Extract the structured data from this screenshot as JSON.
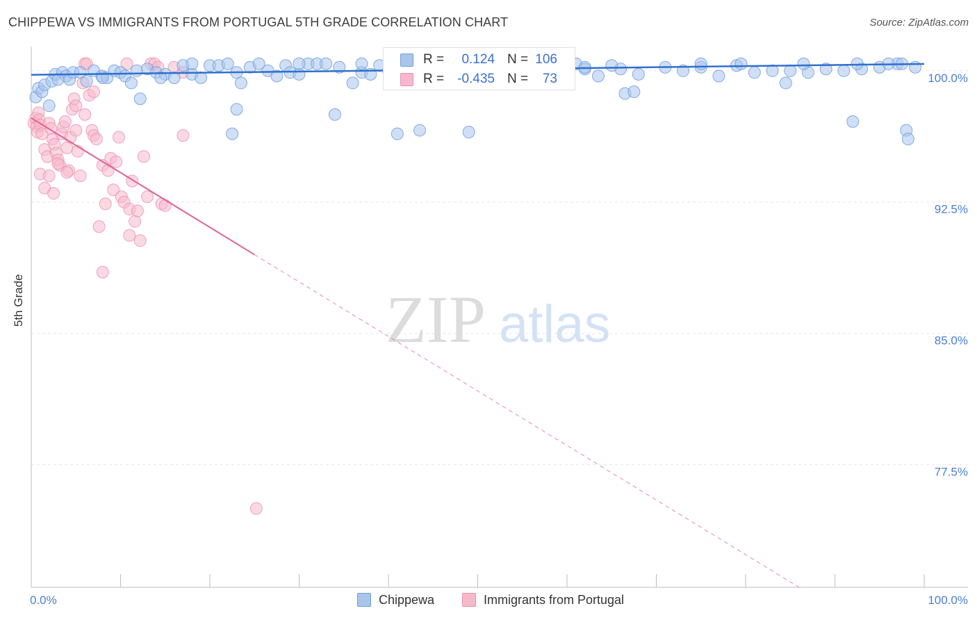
{
  "header": {
    "title": "CHIPPEWA VS IMMIGRANTS FROM PORTUGAL 5TH GRADE CORRELATION CHART",
    "source": "Source: ZipAtlas.com"
  },
  "watermark": {
    "zip": "ZIP",
    "atlas": "atlas"
  },
  "legend_top": {
    "rows": [
      {
        "r_label": "R =",
        "r_value": "0.124",
        "n_label": "N =",
        "n_value": "106"
      },
      {
        "r_label": "R =",
        "r_value": "-0.435",
        "n_label": "N =",
        "n_value": "73"
      }
    ]
  },
  "legend_bottom": {
    "series1": "Chippewa",
    "series2": "Immigrants from Portugal"
  },
  "colors": {
    "blue_fill": "#a9c5ec",
    "blue_stroke": "#6f9fdc",
    "blue_line": "#2f6fcf",
    "pink_fill": "#f6b9cc",
    "pink_stroke": "#ec8fae",
    "pink_line": "#e0628e",
    "axis_label_blue": "#4a7fd4",
    "grid": "#e5e5e5"
  },
  "chart_data": {
    "type": "scatter",
    "title": "CHIPPEWA VS IMMIGRANTS FROM PORTUGAL 5TH GRADE CORRELATION CHART",
    "xlabel": "",
    "ylabel": "5th Grade",
    "xlim": [
      0,
      100
    ],
    "ylim": [
      70.5,
      101.5
    ],
    "y_ticks": [
      100,
      92.5,
      85,
      77.5
    ],
    "y_tick_labels": [
      "100.0%",
      "92.5%",
      "85.0%",
      "77.5%"
    ],
    "x_tick_labels": [
      "0.0%",
      "100.0%"
    ],
    "grid": true,
    "series": [
      {
        "name": "Chippewa",
        "r": 0.124,
        "n": 106,
        "trend": {
          "x": [
            0,
            100
          ],
          "y": [
            99.77,
            100.39
          ],
          "dashed_from": 100
        },
        "points": [
          [
            0.5,
            98.5
          ],
          [
            0.8,
            99.0
          ],
          [
            1.2,
            98.8
          ],
          [
            1.5,
            99.2
          ],
          [
            2.3,
            99.4
          ],
          [
            2.7,
            99.8
          ],
          [
            3.5,
            99.9
          ],
          [
            3.9,
            99.7
          ],
          [
            4.3,
            99.5
          ],
          [
            4.7,
            99.9
          ],
          [
            5.5,
            99.9
          ],
          [
            6.2,
            99.4
          ],
          [
            7.0,
            100.0
          ],
          [
            7.9,
            99.7
          ],
          [
            8.5,
            99.6
          ],
          [
            9.3,
            100.0
          ],
          [
            10.0,
            99.9
          ],
          [
            10.5,
            99.7
          ],
          [
            11.2,
            99.3
          ],
          [
            11.8,
            100.0
          ],
          [
            12.2,
            98.4
          ],
          [
            13.0,
            100.1
          ],
          [
            14.0,
            99.9
          ],
          [
            15.0,
            99.8
          ],
          [
            16.0,
            99.6
          ],
          [
            17.0,
            100.3
          ],
          [
            18.0,
            99.8
          ],
          [
            19.0,
            99.6
          ],
          [
            20.0,
            100.3
          ],
          [
            21.0,
            100.3
          ],
          [
            22.0,
            100.4
          ],
          [
            23.0,
            99.9
          ],
          [
            23.5,
            99.3
          ],
          [
            24.5,
            100.2
          ],
          [
            25.5,
            100.4
          ],
          [
            26.5,
            100.0
          ],
          [
            27.5,
            99.7
          ],
          [
            28.5,
            100.3
          ],
          [
            29.0,
            99.9
          ],
          [
            30.0,
            99.8
          ],
          [
            31.0,
            100.4
          ],
          [
            32.0,
            100.4
          ],
          [
            33.0,
            100.4
          ],
          [
            34.5,
            100.2
          ],
          [
            36.0,
            99.3
          ],
          [
            37.0,
            99.9
          ],
          [
            38.0,
            99.8
          ],
          [
            39.0,
            100.3
          ],
          [
            40.0,
            100.0
          ],
          [
            41.5,
            100.2
          ],
          [
            43.0,
            100.4
          ],
          [
            45.0,
            99.9
          ],
          [
            46.0,
            100.0
          ],
          [
            47.0,
            100.3
          ],
          [
            48.0,
            100.0
          ],
          [
            49.0,
            100.0
          ],
          [
            50.0,
            99.8
          ],
          [
            51.0,
            100.2
          ],
          [
            52.0,
            99.9
          ],
          [
            53.5,
            100.4
          ],
          [
            55.0,
            100.3
          ],
          [
            56.0,
            100.1
          ],
          [
            58.0,
            100.0
          ],
          [
            61.0,
            100.4
          ],
          [
            62.0,
            100.1
          ],
          [
            63.5,
            99.7
          ],
          [
            66.0,
            100.1
          ],
          [
            68.0,
            99.8
          ],
          [
            71.0,
            100.2
          ],
          [
            73.0,
            100.0
          ],
          [
            75.0,
            100.2
          ],
          [
            77.0,
            99.7
          ],
          [
            79.0,
            100.3
          ],
          [
            81.0,
            99.9
          ],
          [
            83.0,
            100.0
          ],
          [
            85.0,
            100.0
          ],
          [
            87.0,
            99.9
          ],
          [
            89.0,
            100.1
          ],
          [
            91.0,
            100.0
          ],
          [
            93.0,
            100.1
          ],
          [
            95.0,
            100.2
          ],
          [
            97.0,
            100.4
          ],
          [
            99.0,
            100.2
          ],
          [
            18.0,
            100.4
          ],
          [
            30.0,
            100.4
          ],
          [
            37.0,
            100.4
          ],
          [
            58.0,
            100.4
          ],
          [
            62.0,
            100.2
          ],
          [
            65.0,
            100.3
          ],
          [
            75.0,
            100.4
          ],
          [
            79.5,
            100.4
          ],
          [
            86.5,
            100.4
          ],
          [
            92.5,
            100.4
          ],
          [
            96.0,
            100.4
          ],
          [
            97.5,
            100.4
          ],
          [
            2.0,
            98.0
          ],
          [
            3.0,
            99.5
          ],
          [
            8.0,
            99.6
          ],
          [
            14.5,
            99.6
          ],
          [
            23.0,
            97.8
          ],
          [
            22.5,
            96.4
          ],
          [
            34.0,
            97.5
          ],
          [
            41.0,
            96.4
          ],
          [
            43.5,
            96.6
          ],
          [
            49.0,
            96.5
          ],
          [
            66.5,
            98.7
          ],
          [
            67.5,
            98.8
          ],
          [
            84.5,
            99.3
          ],
          [
            92.0,
            97.1
          ],
          [
            98.0,
            96.6
          ],
          [
            98.2,
            96.1
          ]
        ]
      },
      {
        "name": "Immigrants from Portugal",
        "r": -0.435,
        "n": 73,
        "trend": {
          "x": [
            0,
            25
          ],
          "y": [
            97.3,
            89.5
          ],
          "dashed_to": [
            86,
            70.5
          ]
        },
        "points": [
          [
            0.3,
            97.0
          ],
          [
            0.5,
            97.3
          ],
          [
            0.6,
            96.8
          ],
          [
            0.7,
            96.5
          ],
          [
            0.8,
            97.6
          ],
          [
            0.9,
            97.2
          ],
          [
            1.0,
            96.9
          ],
          [
            1.2,
            96.4
          ],
          [
            1.5,
            95.5
          ],
          [
            1.8,
            95.1
          ],
          [
            2.0,
            97.0
          ],
          [
            2.2,
            96.7
          ],
          [
            2.4,
            96.1
          ],
          [
            2.6,
            95.8
          ],
          [
            2.8,
            95.3
          ],
          [
            3.0,
            94.9
          ],
          [
            3.2,
            94.6
          ],
          [
            3.4,
            96.4
          ],
          [
            3.6,
            96.8
          ],
          [
            3.8,
            97.1
          ],
          [
            4.0,
            95.6
          ],
          [
            4.2,
            94.3
          ],
          [
            4.4,
            96.2
          ],
          [
            4.6,
            97.8
          ],
          [
            4.8,
            98.4
          ],
          [
            5.0,
            96.6
          ],
          [
            5.2,
            95.4
          ],
          [
            5.5,
            94.0
          ],
          [
            5.8,
            99.3
          ],
          [
            6.0,
            100.4
          ],
          [
            6.2,
            100.4
          ],
          [
            6.5,
            98.6
          ],
          [
            6.8,
            96.6
          ],
          [
            7.0,
            96.3
          ],
          [
            7.3,
            96.1
          ],
          [
            7.6,
            91.1
          ],
          [
            8.0,
            94.6
          ],
          [
            8.3,
            92.4
          ],
          [
            8.6,
            94.3
          ],
          [
            8.9,
            95.0
          ],
          [
            9.2,
            93.2
          ],
          [
            9.5,
            94.8
          ],
          [
            9.8,
            96.2
          ],
          [
            10.1,
            92.8
          ],
          [
            10.4,
            92.5
          ],
          [
            10.7,
            100.4
          ],
          [
            11.0,
            92.1
          ],
          [
            11.3,
            93.7
          ],
          [
            11.6,
            91.4
          ],
          [
            11.9,
            92.0
          ],
          [
            12.2,
            90.3
          ],
          [
            12.6,
            95.1
          ],
          [
            13.0,
            92.8
          ],
          [
            13.4,
            100.4
          ],
          [
            13.8,
            100.4
          ],
          [
            14.2,
            100.2
          ],
          [
            14.6,
            92.4
          ],
          [
            15.0,
            92.3
          ],
          [
            16.0,
            100.2
          ],
          [
            17.0,
            99.9
          ],
          [
            1.0,
            94.1
          ],
          [
            1.5,
            93.3
          ],
          [
            2.0,
            94.0
          ],
          [
            2.5,
            93.0
          ],
          [
            3.0,
            94.7
          ],
          [
            4.0,
            94.2
          ],
          [
            5.0,
            98.0
          ],
          [
            6.0,
            97.5
          ],
          [
            7.0,
            98.8
          ],
          [
            8.0,
            88.5
          ],
          [
            11.0,
            90.6
          ],
          [
            17.0,
            96.3
          ],
          [
            25.2,
            75.0
          ]
        ]
      }
    ]
  }
}
